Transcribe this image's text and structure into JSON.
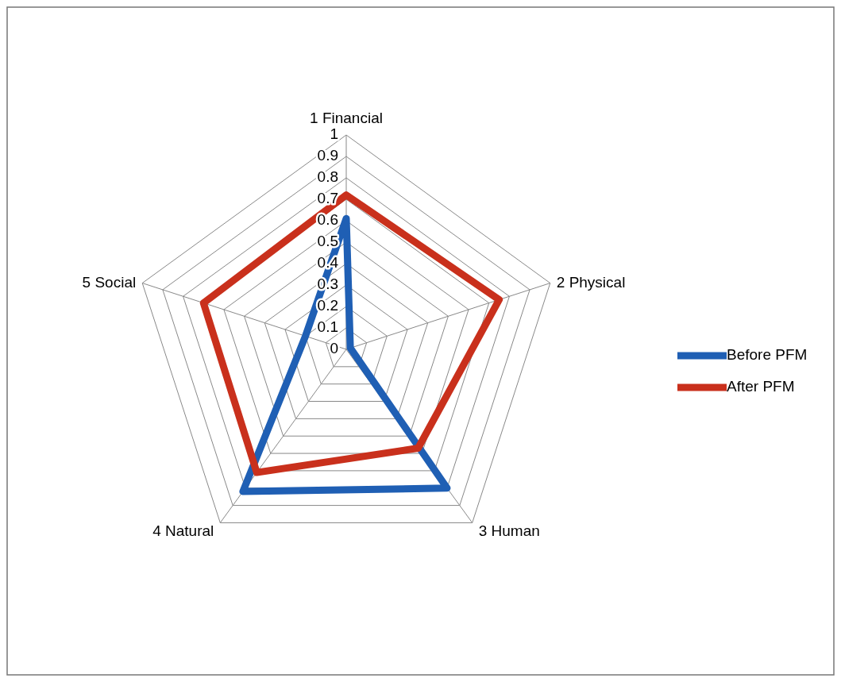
{
  "chart_data": {
    "type": "radar",
    "categories": [
      "1 Financial",
      "2 Physical",
      "3 Human",
      "4 Natural",
      "5 Social"
    ],
    "series": [
      {
        "name": "Before PFM",
        "color": "#1f5fb4",
        "values": [
          0.61,
          0.02,
          0.8,
          0.82,
          0.2
        ]
      },
      {
        "name": "After PFM",
        "color": "#c9301c",
        "values": [
          0.72,
          0.75,
          0.57,
          0.71,
          0.7
        ]
      }
    ],
    "ylim": [
      0,
      1
    ],
    "yticks": [
      0,
      0.1,
      0.2,
      0.3,
      0.4,
      0.5,
      0.6,
      0.7,
      0.8,
      0.9,
      1
    ],
    "grid": true,
    "legend": "right",
    "marker": "none"
  }
}
